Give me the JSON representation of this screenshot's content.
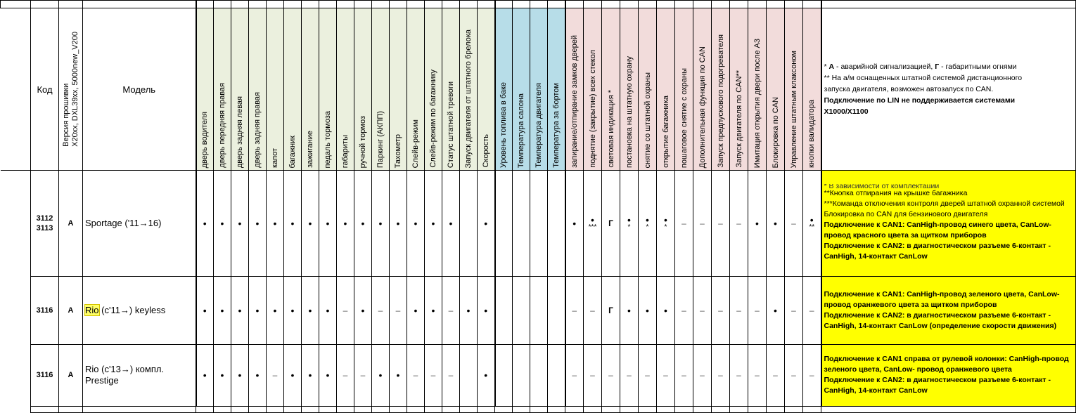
{
  "header": {
    "code": "Код",
    "firmware": [
      "Версия прошивки",
      "X20xx, DXL39xx, 5000new_V200"
    ],
    "model": "Модель",
    "notes": [
      {
        "text": "* ",
        "bold": false
      },
      {
        "text": "А",
        "bold": true
      },
      {
        "text": " - аварийной сигнализацией, ",
        "bold": false
      },
      {
        "text": "Г",
        "bold": true
      },
      {
        "text": " - габаритными огнями",
        "bold": false
      }
    ],
    "notes_lines": [
      "** На а/м оснащенных штатной системой дистанционного",
      "запуска двигателя, возможен автозапуск по CAN."
    ],
    "notes_bold_lines": [
      "Подключение по LIN не поддерживается системами",
      "X1000/X1100"
    ]
  },
  "columns": [
    {
      "label": "дверь водителя",
      "group": "green"
    },
    {
      "label": "дверь передняя правая",
      "group": "green"
    },
    {
      "label": "дверь задняя левая",
      "group": "green"
    },
    {
      "label": "дверь задняя правая",
      "group": "green"
    },
    {
      "label": "капот",
      "group": "green"
    },
    {
      "label": "багажник",
      "group": "green"
    },
    {
      "label": "зажигание",
      "group": "green"
    },
    {
      "label": "педаль тормоза",
      "group": "green"
    },
    {
      "label": "габариты",
      "group": "green"
    },
    {
      "label": "ручной тормоз",
      "group": "green"
    },
    {
      "label": "Паркинг (АКПП)",
      "group": "green"
    },
    {
      "label": "Тахометр",
      "group": "green"
    },
    {
      "label": "Слейв-режим",
      "group": "green"
    },
    {
      "label": "Слейв-режим по багажнику",
      "group": "green"
    },
    {
      "label": "Статус штатной тревоги",
      "group": "green"
    },
    {
      "label": "Запуск двигателя  от штатного брелока",
      "group": "green"
    },
    {
      "label": "Скорость",
      "group": "green"
    },
    {
      "label": "Уровень топлива в баке",
      "group": "blue"
    },
    {
      "label": "Температура салона",
      "group": "blue"
    },
    {
      "label": "Температура двигателя",
      "group": "blue"
    },
    {
      "label": "Температура за бортом",
      "group": "blue"
    },
    {
      "label": "запирание/отпирание  замков дверей",
      "group": "pink"
    },
    {
      "label": "поднятие (закрытие) всех стекол",
      "group": "pink"
    },
    {
      "label": "световая индикация *",
      "group": "pink"
    },
    {
      "label": "постановка на штатную охрану",
      "group": "pink"
    },
    {
      "label": "снятие со штатной охраны",
      "group": "pink"
    },
    {
      "label": "открытие багажника",
      "group": "pink"
    },
    {
      "label": "пошаговое снятие с охраны",
      "group": "pink"
    },
    {
      "label": "Дополнительная функция по CAN",
      "group": "pink"
    },
    {
      "label": "Запуск предпускового подогревателя",
      "group": "pink"
    },
    {
      "label": "Запуск двигателя по CAN**",
      "group": "pink"
    },
    {
      "label": "Имитация открытия двери после А3",
      "group": "pink"
    },
    {
      "label": "Блокировка по CAN",
      "group": "pink"
    },
    {
      "label": "Управление штатным клаксоном",
      "group": "pink"
    },
    {
      "label": "кнопки валидатора",
      "group": "pink"
    }
  ],
  "rows": [
    {
      "codes": [
        "3112",
        "3113"
      ],
      "firmware": "A",
      "model_hl": "",
      "model": "Sportage ('11→16)",
      "cells": [
        [
          "•",
          ""
        ],
        [
          "•",
          ""
        ],
        [
          "•",
          ""
        ],
        [
          "•",
          ""
        ],
        [
          "•",
          ""
        ],
        [
          "•",
          ""
        ],
        [
          "•",
          ""
        ],
        [
          "•",
          ""
        ],
        [
          "•",
          ""
        ],
        [
          "•",
          ""
        ],
        [
          "•",
          ""
        ],
        [
          "•",
          ""
        ],
        [
          "•",
          ""
        ],
        [
          "•",
          ""
        ],
        [
          "•",
          ""
        ],
        [
          "",
          ""
        ],
        [
          "•",
          ""
        ],
        [
          "",
          ""
        ],
        [
          "",
          ""
        ],
        [
          "",
          ""
        ],
        [
          "",
          ""
        ],
        [
          "•",
          ""
        ],
        [
          "•",
          "***"
        ],
        [
          "Г",
          ""
        ],
        [
          "•",
          "*"
        ],
        [
          "•",
          "*"
        ],
        [
          "•",
          "*"
        ],
        [
          "–",
          ""
        ],
        [
          "–",
          ""
        ],
        [
          "–",
          ""
        ],
        [
          "–",
          ""
        ],
        [
          "•",
          ""
        ],
        [
          "•",
          ""
        ],
        [
          "–",
          ""
        ],
        [
          "•",
          "**"
        ]
      ],
      "note_top": "* В зависимости от комплектации",
      "note_lines": [
        {
          "t": "**Кнопка отпирания на крышке багажника",
          "b": false
        },
        {
          "t": "***Команда отключения контроля дверей штатной охранной системой",
          "b": false
        },
        {
          "t": "Блокировка по CAN для бензинового двигателя",
          "b": false
        },
        {
          "t": "Подключение к CAN1: CanHigh-провод синего цвета, CanLow- провод красного цвета за щитком приборов",
          "b": true
        },
        {
          "t": "Подключение к CAN2: в диагностическом разъеме 6-контакт - CanHigh, 14-контакт CanLow",
          "b": true
        }
      ]
    },
    {
      "codes": [
        "3116"
      ],
      "firmware": "A",
      "model_hl": "Rio",
      "model": " (c'11→) keyless",
      "cells": [
        [
          "•",
          ""
        ],
        [
          "•",
          ""
        ],
        [
          "•",
          ""
        ],
        [
          "•",
          ""
        ],
        [
          "•",
          ""
        ],
        [
          "•",
          ""
        ],
        [
          "•",
          ""
        ],
        [
          "•",
          ""
        ],
        [
          "–",
          ""
        ],
        [
          "•",
          ""
        ],
        [
          "–",
          ""
        ],
        [
          "–",
          ""
        ],
        [
          "•",
          ""
        ],
        [
          "•",
          ""
        ],
        [
          "–",
          ""
        ],
        [
          "•",
          ""
        ],
        [
          "•",
          ""
        ],
        [
          "",
          ""
        ],
        [
          "",
          ""
        ],
        [
          "",
          ""
        ],
        [
          "",
          ""
        ],
        [
          "–",
          ""
        ],
        [
          "–",
          ""
        ],
        [
          "Г",
          ""
        ],
        [
          "•",
          ""
        ],
        [
          "•",
          ""
        ],
        [
          "•",
          ""
        ],
        [
          "–",
          ""
        ],
        [
          "–",
          ""
        ],
        [
          "–",
          ""
        ],
        [
          "–",
          ""
        ],
        [
          "–",
          ""
        ],
        [
          "•",
          ""
        ],
        [
          "–",
          ""
        ],
        [
          "–",
          ""
        ]
      ],
      "note_top": "",
      "note_lines": [
        {
          "t": "Подключение к CAN1: CanHigh-провод зеленого цвета, CanLow- провод  оранжевого цвета за щитком приборов",
          "b": true
        },
        {
          "t": "Подключение к CAN2: в диагностическом разъеме 6-контакт - CanHigh, 14-контакт CanLow (определение скорости движения)",
          "b": true
        }
      ]
    },
    {
      "codes": [
        "3116"
      ],
      "firmware": "A",
      "model_hl": "",
      "model": "Rio (c'13→) компл. Prestige",
      "cells": [
        [
          "•",
          ""
        ],
        [
          "•",
          ""
        ],
        [
          "•",
          ""
        ],
        [
          "•",
          ""
        ],
        [
          "–",
          ""
        ],
        [
          "•",
          ""
        ],
        [
          "•",
          ""
        ],
        [
          "•",
          ""
        ],
        [
          "–",
          ""
        ],
        [
          "–",
          ""
        ],
        [
          "•",
          ""
        ],
        [
          "•",
          ""
        ],
        [
          "–",
          ""
        ],
        [
          "–",
          ""
        ],
        [
          "–",
          ""
        ],
        [
          "",
          ""
        ],
        [
          "•",
          ""
        ],
        [
          "",
          ""
        ],
        [
          "",
          ""
        ],
        [
          "",
          ""
        ],
        [
          "",
          ""
        ],
        [
          "–",
          ""
        ],
        [
          "–",
          ""
        ],
        [
          "–",
          ""
        ],
        [
          "–",
          ""
        ],
        [
          "–",
          ""
        ],
        [
          "–",
          ""
        ],
        [
          "–",
          ""
        ],
        [
          "–",
          ""
        ],
        [
          "–",
          ""
        ],
        [
          "–",
          ""
        ],
        [
          "–",
          ""
        ],
        [
          "–",
          ""
        ],
        [
          "–",
          ""
        ],
        [
          "–",
          ""
        ]
      ],
      "note_top": "",
      "note_lines": [
        {
          "t": "Подключение к CAN1 справа от рулевой колонки: CanHigh-провод зеленого цвета, CanLow- провод  оранжевого цвета",
          "b": true
        },
        {
          "t": "Подключение к CAN2: в диагностическом разъеме 6-контакт - CanHigh, 14-контакт CanLow",
          "b": true
        }
      ]
    }
  ]
}
